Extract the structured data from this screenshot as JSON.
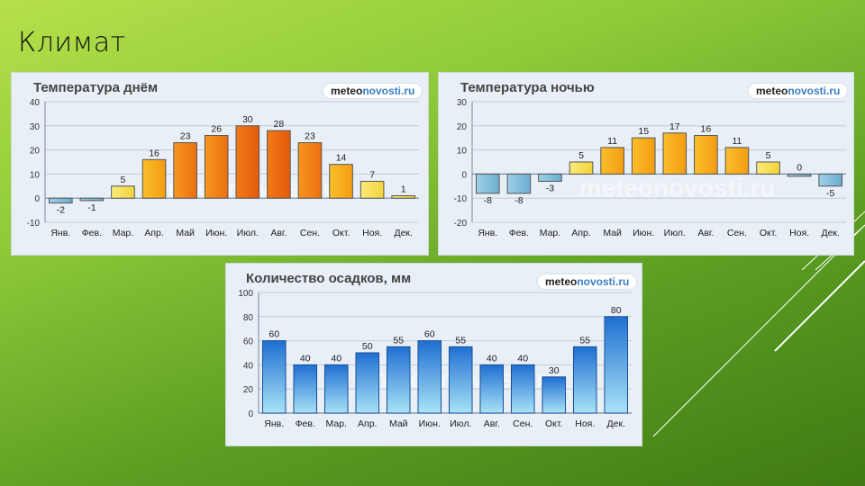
{
  "slide": {
    "title": "Климат"
  },
  "brand": {
    "part1": "meteo",
    "part2": "novosti.ru"
  },
  "watermark": "meteonovosti.ru",
  "chart_data": [
    {
      "type": "bar",
      "title": "Температура днём",
      "categories": [
        "Янв.",
        "Фев.",
        "Мар.",
        "Апр.",
        "Май",
        "Июн.",
        "Июл.",
        "Авг.",
        "Сен.",
        "Окт.",
        "Ноя.",
        "Дек."
      ],
      "values": [
        -2,
        -1,
        5,
        16,
        23,
        26,
        30,
        28,
        23,
        14,
        7,
        1
      ],
      "ylim": [
        -10,
        40
      ],
      "yticks": [
        -10,
        0,
        10,
        20,
        30,
        40
      ],
      "grid": true
    },
    {
      "type": "bar",
      "title": "Температура ночью",
      "categories": [
        "Янв.",
        "Фев.",
        "Мар.",
        "Апр.",
        "Май",
        "Июн.",
        "Июл.",
        "Авг.",
        "Сен.",
        "Окт.",
        "Ноя.",
        "Дек."
      ],
      "values": [
        -8,
        -8,
        -3,
        5,
        11,
        15,
        17,
        16,
        11,
        5,
        0,
        -5
      ],
      "ylim": [
        -20,
        30
      ],
      "yticks": [
        -20,
        -10,
        0,
        10,
        20,
        30
      ],
      "grid": true
    },
    {
      "type": "bar",
      "title": "Количество осадков, мм",
      "categories": [
        "Янв.",
        "Фев.",
        "Мар.",
        "Апр.",
        "Май",
        "Июн.",
        "Июл.",
        "Авг.",
        "Сен.",
        "Окт.",
        "Ноя.",
        "Дек."
      ],
      "values": [
        60,
        40,
        40,
        50,
        55,
        60,
        55,
        40,
        40,
        30,
        55,
        80
      ],
      "ylim": [
        0,
        100
      ],
      "yticks": [
        0,
        20,
        40,
        60,
        80,
        100
      ],
      "grid": true
    }
  ]
}
